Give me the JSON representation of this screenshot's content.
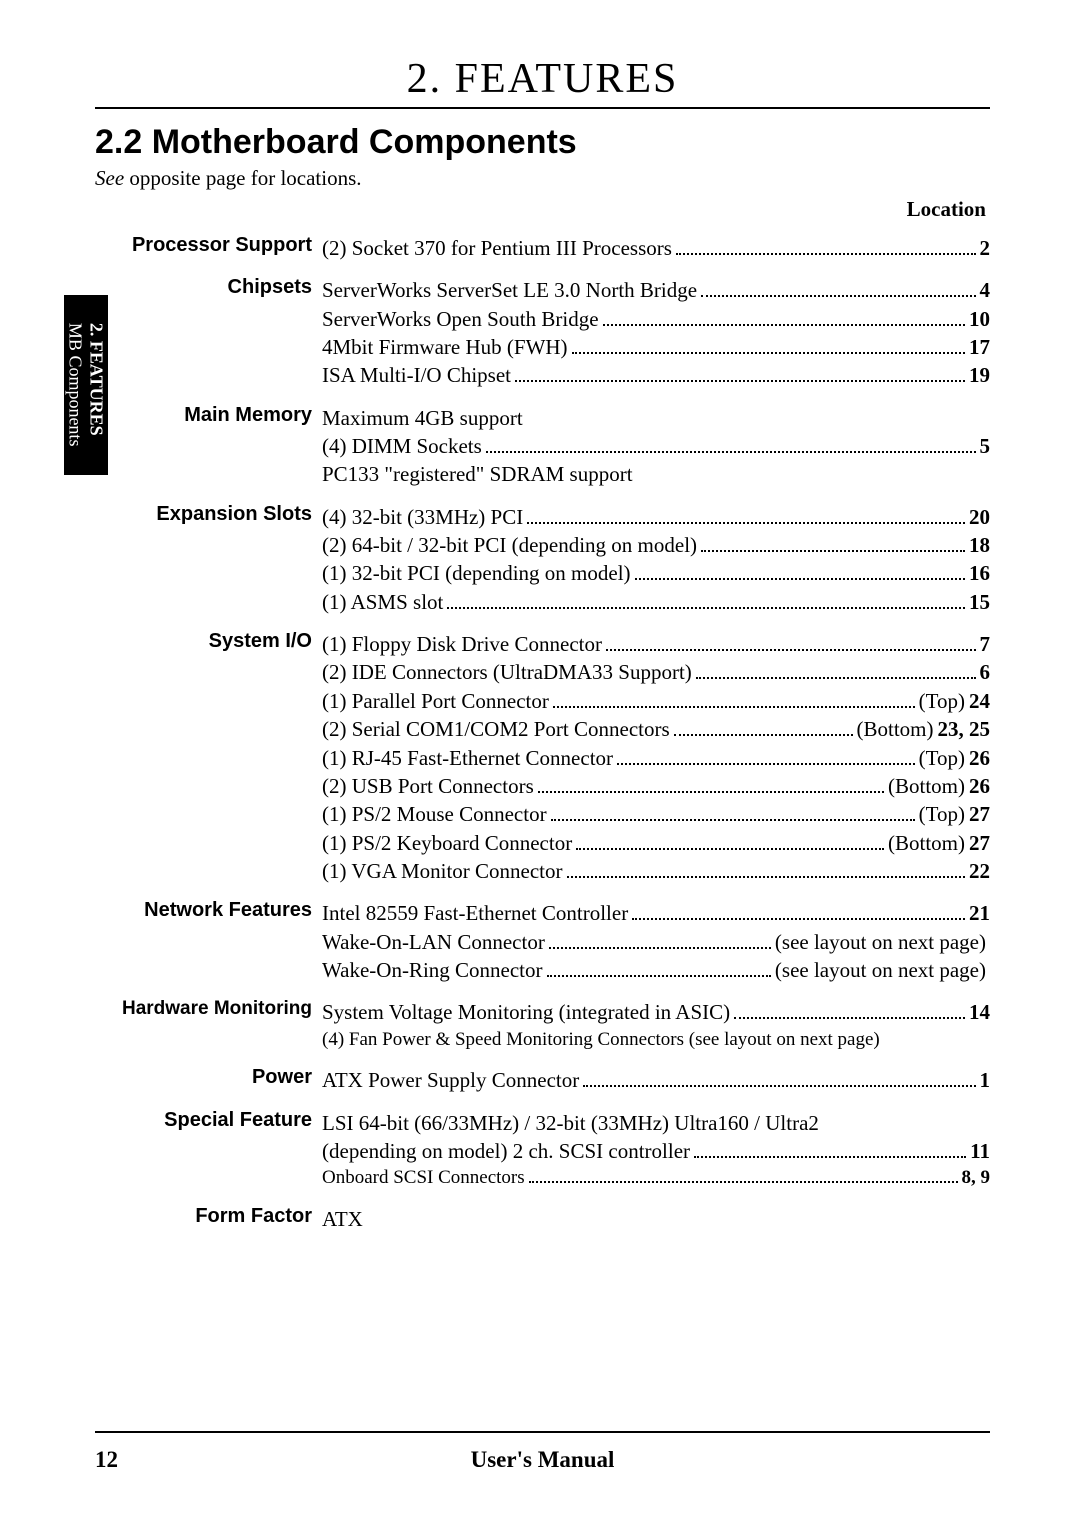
{
  "chapter_title": "2.  FEATURES",
  "section_title": "2.2  Motherboard Components",
  "see_prefix": "See",
  "see_rest": " opposite page for locations.",
  "location_header": "Location",
  "side_tab_line1": "2.  FEATURES",
  "side_tab_line2": "MB Components",
  "page_number": "12",
  "footer_center": "User's Manual",
  "sections": {
    "processor": {
      "label": "Processor Support",
      "items": [
        {
          "text": "(2) Socket 370 for Pentium III Processors",
          "loc": "2"
        }
      ]
    },
    "chipsets": {
      "label": "Chipsets",
      "items": [
        {
          "text": "ServerWorks ServerSet LE 3.0 North Bridge",
          "loc": "4"
        },
        {
          "text": "ServerWorks Open South Bridge",
          "loc": "10"
        },
        {
          "text": "4Mbit Firmware Hub (FWH)",
          "loc": "17"
        },
        {
          "text": "ISA Multi-I/O Chipset",
          "loc": "19"
        }
      ]
    },
    "memory": {
      "label": "Main Memory",
      "pre": "Maximum 4GB support",
      "items": [
        {
          "text": "(4) DIMM Sockets",
          "loc": "5"
        }
      ],
      "post": "PC133 \"registered\" SDRAM support"
    },
    "expansion": {
      "label": "Expansion Slots",
      "items": [
        {
          "text": "(4) 32-bit (33MHz) PCI",
          "loc": "20"
        },
        {
          "text": "(2) 64-bit / 32-bit PCI (depending on model)",
          "loc": "18"
        },
        {
          "text": "(1) 32-bit PCI (depending on model)",
          "loc": "16"
        },
        {
          "text": "(1) ASMS slot",
          "loc": "15"
        }
      ]
    },
    "sysio": {
      "label": "System I/O",
      "items": [
        {
          "text": "(1) Floppy Disk Drive Connector",
          "loc": "7"
        },
        {
          "text": "(2) IDE Connectors (UltraDMA33 Support)",
          "loc": "6"
        },
        {
          "text": "(1) Parallel Port Connector",
          "prefix": "(Top)",
          "loc": "24"
        },
        {
          "text": "(2) Serial COM1/COM2 Port Connectors",
          "prefix": "(Bottom)",
          "loc": "23, 25"
        },
        {
          "text": "(1) RJ-45 Fast-Ethernet Connector",
          "prefix": "(Top)",
          "loc": "26"
        },
        {
          "text": "(2) USB Port Connectors",
          "prefix": "(Bottom)",
          "loc": "26"
        },
        {
          "text": "(1) PS/2 Mouse Connector",
          "prefix": "(Top)",
          "loc": "27"
        },
        {
          "text": "(1) PS/2 Keyboard Connector",
          "prefix": "(Bottom)",
          "loc": "27"
        },
        {
          "text": "(1) VGA Monitor Connector",
          "loc": "22"
        }
      ]
    },
    "network": {
      "label": "Network Features",
      "items": [
        {
          "text": "Intel 82559 Fast-Ethernet Controller",
          "loc": "21"
        },
        {
          "text": "Wake-On-LAN Connector",
          "suffix": "(see layout on next page)"
        },
        {
          "text": "Wake-On-Ring Connector",
          "suffix": "(see layout on next page)"
        }
      ]
    },
    "hwmon": {
      "label": "Hardware Monitoring",
      "items": [
        {
          "text": "System Voltage Monitoring (integrated in ASIC)",
          "loc": "14"
        }
      ],
      "post": "(4) Fan Power & Speed Monitoring Connectors (see layout on next page)"
    },
    "power": {
      "label": "Power",
      "items": [
        {
          "text": "ATX Power Supply Connector",
          "loc": "1"
        }
      ]
    },
    "special": {
      "label": "Special Feature",
      "pre": "LSI 64-bit (66/33MHz) / 32-bit (33MHz) Ultra160 / Ultra2",
      "items": [
        {
          "text": "(depending on model) 2 ch. SCSI controller",
          "loc": "11"
        },
        {
          "text": "Onboard SCSI Connectors",
          "loc": "8, 9"
        }
      ]
    },
    "form": {
      "label": "Form Factor",
      "text": "ATX"
    }
  }
}
